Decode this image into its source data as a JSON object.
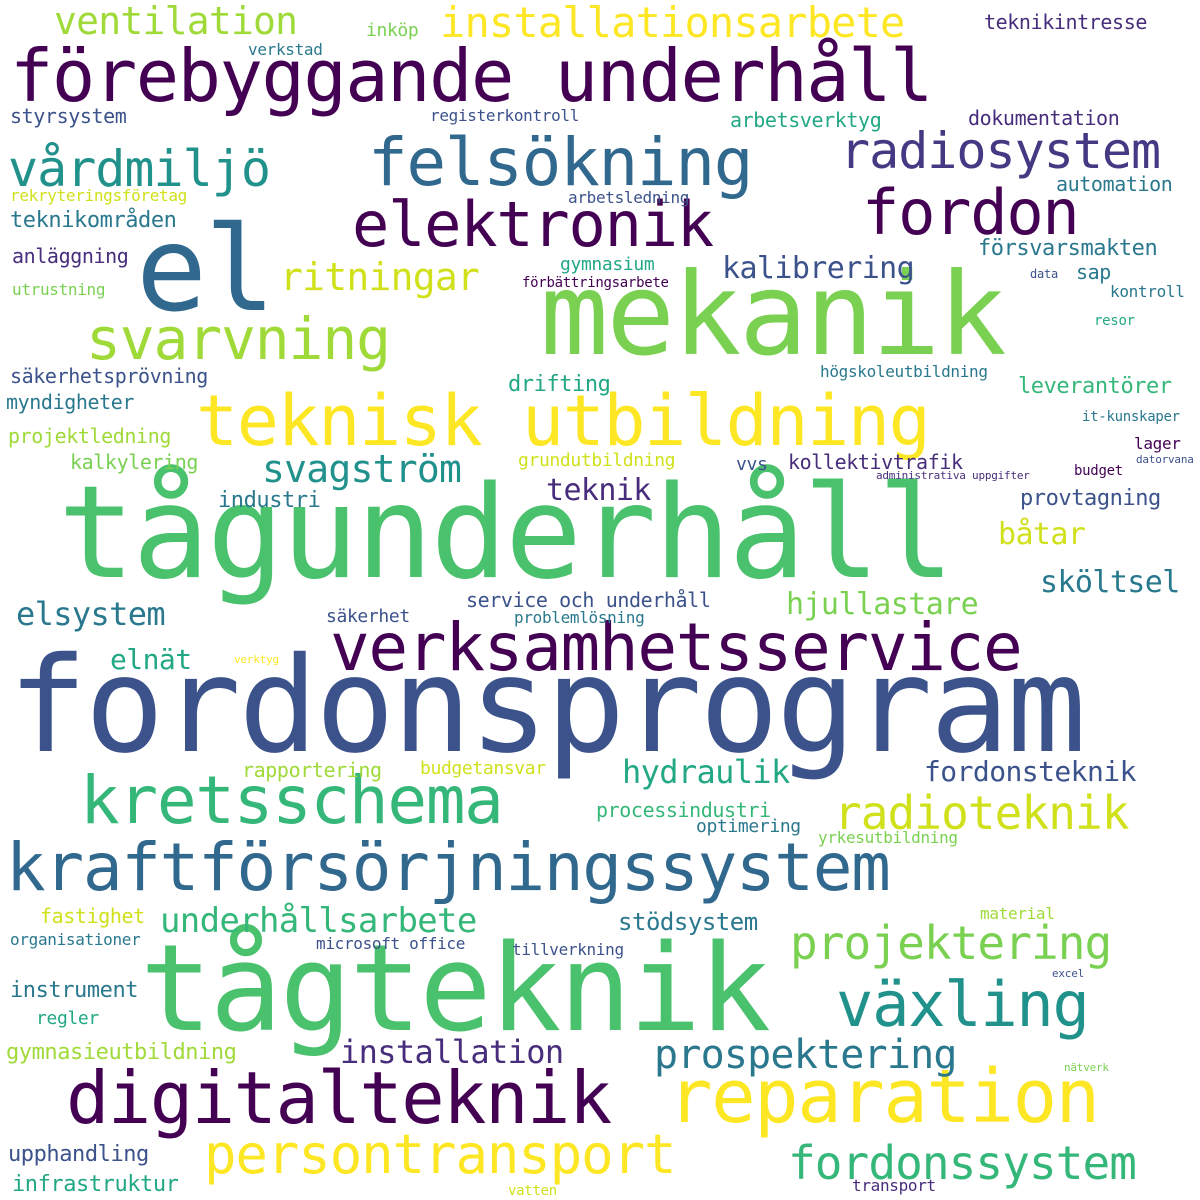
{
  "words": [
    {
      "text": "fordonsprogram",
      "color": "#3b528b"
    },
    {
      "text": "tågunderhåll",
      "color": "#4ac16d"
    },
    {
      "text": "tågteknik",
      "color": "#4ac16d"
    },
    {
      "text": "mekanik",
      "color": "#7ad151"
    },
    {
      "text": "el",
      "color": "#31688e"
    },
    {
      "text": "förebyggande underhåll",
      "color": "#440154"
    },
    {
      "text": "verksamhetsservice",
      "color": "#440154"
    },
    {
      "text": "kraftförsörjningssystem",
      "color": "#31688e"
    },
    {
      "text": "teknisk utbildning",
      "color": "#fde725"
    },
    {
      "text": "digitalteknik",
      "color": "#440154"
    },
    {
      "text": "reparation",
      "color": "#fde725"
    },
    {
      "text": "felsökning",
      "color": "#31688e"
    },
    {
      "text": "kretsschema",
      "color": "#35b779"
    },
    {
      "text": "elektronik",
      "color": "#440154"
    },
    {
      "text": "fordon",
      "color": "#440154"
    },
    {
      "text": "vårdmiljö",
      "color": "#21918c"
    },
    {
      "text": "svarvning",
      "color": "#a0da39"
    },
    {
      "text": "växling",
      "color": "#21918c"
    },
    {
      "text": "persontransport",
      "color": "#fde725"
    },
    {
      "text": "radiosystem",
      "color": "#443983"
    },
    {
      "text": "projektering",
      "color": "#7ad151"
    },
    {
      "text": "fordonssystem",
      "color": "#35b779"
    },
    {
      "text": "installationsarbete",
      "color": "#fde725"
    },
    {
      "text": "radioteknik",
      "color": "#d0e11c"
    },
    {
      "text": "prospektering",
      "color": "#2a788e"
    },
    {
      "text": "ritningar",
      "color": "#d0e11c"
    },
    {
      "text": "svagström",
      "color": "#21918c"
    },
    {
      "text": "ventilation",
      "color": "#a0da39"
    },
    {
      "text": "underhållsarbete",
      "color": "#35b779"
    },
    {
      "text": "installation",
      "color": "#472d7b"
    },
    {
      "text": "elsystem",
      "color": "#2a788e"
    },
    {
      "text": "hydraulik",
      "color": "#22a884"
    },
    {
      "text": "kalibrering",
      "color": "#3b528b"
    },
    {
      "text": "fordonsteknik",
      "color": "#3b528b"
    },
    {
      "text": "hjullastare",
      "color": "#7ad151"
    },
    {
      "text": "sköltsel",
      "color": "#2a788e"
    },
    {
      "text": "teknik",
      "color": "#472d7b"
    },
    {
      "text": "båtar",
      "color": "#d0e11c"
    },
    {
      "text": "elnät",
      "color": "#22a884"
    },
    {
      "text": "stödsystem",
      "color": "#2a788e"
    },
    {
      "text": "teknikintresse",
      "color": "#472d7b"
    },
    {
      "text": "styrsystem",
      "color": "#3b528b"
    },
    {
      "text": "verkstad",
      "color": "#2a788e"
    },
    {
      "text": "inköp",
      "color": "#7ad151"
    },
    {
      "text": "registerkontroll",
      "color": "#3b528b"
    },
    {
      "text": "arbetsverktyg",
      "color": "#22a884"
    },
    {
      "text": "dokumentation",
      "color": "#472d7b"
    },
    {
      "text": "automation",
      "color": "#2a788e"
    },
    {
      "text": "rekryteringsföretag",
      "color": "#d0e11c"
    },
    {
      "text": "arbetsledning",
      "color": "#3b528b"
    },
    {
      "text": "teknikområden",
      "color": "#2a788e"
    },
    {
      "text": "försvarsmakten",
      "color": "#2a788e"
    },
    {
      "text": "anläggning",
      "color": "#472d7b"
    },
    {
      "text": "gymnasium",
      "color": "#22a884"
    },
    {
      "text": "sap",
      "color": "#2a788e"
    },
    {
      "text": "utrustning",
      "color": "#7ad151"
    },
    {
      "text": "förbättringsarbete",
      "color": "#440154"
    },
    {
      "text": "data",
      "color": "#3b528b"
    },
    {
      "text": "kontroll",
      "color": "#2a788e"
    },
    {
      "text": "resor",
      "color": "#22a884"
    },
    {
      "text": "säkerhetsprövning",
      "color": "#3b528b"
    },
    {
      "text": "högskoleutbildning",
      "color": "#2a788e"
    },
    {
      "text": "drifting",
      "color": "#22a884"
    },
    {
      "text": "leverantörer",
      "color": "#35b779"
    },
    {
      "text": "myndigheter",
      "color": "#2a788e"
    },
    {
      "text": "it-kunskaper",
      "color": "#2a788e"
    },
    {
      "text": "projektledning",
      "color": "#a0da39"
    },
    {
      "text": "lager",
      "color": "#440154"
    },
    {
      "text": "kalkylering",
      "color": "#7ad151"
    },
    {
      "text": "grundutbildning",
      "color": "#d0e11c"
    },
    {
      "text": "vvs",
      "color": "#3b528b"
    },
    {
      "text": "kollektivtrafik",
      "color": "#472d7b"
    },
    {
      "text": "datorvana",
      "color": "#3b528b"
    },
    {
      "text": "administrativa uppgifter",
      "color": "#472d7b"
    },
    {
      "text": "budget",
      "color": "#440154"
    },
    {
      "text": "industri",
      "color": "#2a788e"
    },
    {
      "text": "provtagning",
      "color": "#3b528b"
    },
    {
      "text": "service och underhåll",
      "color": "#3b528b"
    },
    {
      "text": "säkerhet",
      "color": "#3b528b"
    },
    {
      "text": "problemlösning",
      "color": "#2a788e"
    },
    {
      "text": "verktyg",
      "color": "#fde725"
    },
    {
      "text": "rapportering",
      "color": "#a0da39"
    },
    {
      "text": "budgetansvar",
      "color": "#d0e11c"
    },
    {
      "text": "processindustri",
      "color": "#35b779"
    },
    {
      "text": "optimering",
      "color": "#2a788e"
    },
    {
      "text": "yrkesutbildning",
      "color": "#7ad151"
    },
    {
      "text": "fastighet",
      "color": "#d0e11c"
    },
    {
      "text": "material",
      "color": "#a0da39"
    },
    {
      "text": "organisationer",
      "color": "#2a788e"
    },
    {
      "text": "microsoft office",
      "color": "#3b528b"
    },
    {
      "text": "tillverkning",
      "color": "#3b528b"
    },
    {
      "text": "excel",
      "color": "#3b528b"
    },
    {
      "text": "instrument",
      "color": "#2a788e"
    },
    {
      "text": "regler",
      "color": "#22a884"
    },
    {
      "text": "gymnasieutbildning",
      "color": "#a0da39"
    },
    {
      "text": "nätverk",
      "color": "#7ad151"
    },
    {
      "text": "upphandling",
      "color": "#3b528b"
    },
    {
      "text": "infrastruktur",
      "color": "#22a884"
    },
    {
      "text": "vatten",
      "color": "#d0e11c"
    },
    {
      "text": "transport",
      "color": "#472d7b"
    }
  ]
}
